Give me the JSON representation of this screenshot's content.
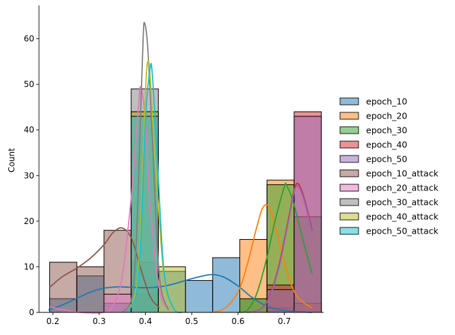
{
  "chart_data": {
    "type": "histogram",
    "title": "",
    "xlabel": "",
    "ylabel": "Count",
    "xlim": [
      0.17,
      0.785
    ],
    "ylim": [
      0,
      67
    ],
    "xticks": [
      0.2,
      0.3,
      0.4,
      0.5,
      0.6,
      0.7
    ],
    "xtick_labels": [
      "0.2",
      "0.3",
      "0.4",
      "0.5",
      "0.6",
      "0.7"
    ],
    "yticks": [
      0,
      10,
      20,
      30,
      40,
      50,
      60
    ],
    "ytick_labels": [
      "0",
      "10",
      "20",
      "30",
      "40",
      "50",
      "60"
    ],
    "bin_edges": [
      0.193,
      0.2517,
      0.3104,
      0.3691,
      0.4278,
      0.4865,
      0.5452,
      0.6039,
      0.6626,
      0.7213,
      0.78
    ],
    "grid": false,
    "legend_position": "right",
    "kde": true,
    "series": [
      {
        "name": "epoch_10",
        "color": "#1f77b4",
        "counts": [
          3,
          8,
          2,
          4,
          9,
          7,
          12,
          3,
          1,
          0
        ],
        "kde": [
          [
            0.19,
            0.5
          ],
          [
            0.22,
            1.6
          ],
          [
            0.25,
            3
          ],
          [
            0.28,
            4.4
          ],
          [
            0.31,
            5.3
          ],
          [
            0.34,
            5.6
          ],
          [
            0.37,
            5.5
          ],
          [
            0.4,
            5.4
          ],
          [
            0.43,
            5.6
          ],
          [
            0.46,
            6.2
          ],
          [
            0.49,
            7.1
          ],
          [
            0.52,
            7.9
          ],
          [
            0.545,
            8.3
          ],
          [
            0.57,
            7.7
          ],
          [
            0.6,
            5.8
          ],
          [
            0.63,
            3.3
          ],
          [
            0.66,
            1.5
          ],
          [
            0.69,
            0.6
          ],
          [
            0.72,
            0.2
          ],
          [
            0.76,
            0
          ]
        ]
      },
      {
        "name": "epoch_20",
        "color": "#ff7f0e",
        "counts": [
          0,
          0,
          0,
          0,
          0,
          0,
          0,
          16,
          29,
          2
        ],
        "kde": [
          [
            0.54,
            0
          ],
          [
            0.57,
            0.8
          ],
          [
            0.6,
            4.5
          ],
          [
            0.62,
            10.5
          ],
          [
            0.64,
            18.5
          ],
          [
            0.655,
            23.2
          ],
          [
            0.67,
            22.5
          ],
          [
            0.69,
            15
          ],
          [
            0.71,
            7.5
          ],
          [
            0.73,
            3.2
          ],
          [
            0.76,
            1
          ]
        ]
      },
      {
        "name": "epoch_30",
        "color": "#2ca02c",
        "counts": [
          0,
          0,
          0,
          0,
          0,
          0,
          0,
          3,
          28,
          21
        ],
        "kde": [
          [
            0.6,
            0
          ],
          [
            0.62,
            0.5
          ],
          [
            0.64,
            4
          ],
          [
            0.66,
            11
          ],
          [
            0.68,
            20
          ],
          [
            0.7,
            27.5
          ],
          [
            0.705,
            27.8
          ],
          [
            0.72,
            24
          ],
          [
            0.74,
            16
          ],
          [
            0.76,
            8.5
          ]
        ]
      },
      {
        "name": "epoch_40",
        "color": "#d62728",
        "counts": [
          0,
          0,
          0,
          0,
          0,
          0,
          0,
          0,
          6,
          44
        ],
        "kde": [
          [
            0.62,
            0
          ],
          [
            0.65,
            0.8
          ],
          [
            0.67,
            4
          ],
          [
            0.69,
            11
          ],
          [
            0.71,
            21
          ],
          [
            0.725,
            28
          ],
          [
            0.74,
            26
          ],
          [
            0.76,
            18
          ]
        ]
      },
      {
        "name": "epoch_50",
        "color": "#9467bd",
        "counts": [
          0,
          0,
          0,
          0,
          0,
          0,
          0,
          0,
          5,
          43
        ],
        "kde": [
          [
            0.62,
            0
          ],
          [
            0.65,
            0.7
          ],
          [
            0.67,
            3.8
          ],
          [
            0.69,
            10.5
          ],
          [
            0.71,
            20.5
          ],
          [
            0.725,
            27.5
          ],
          [
            0.74,
            25.5
          ],
          [
            0.76,
            17.5
          ]
        ]
      },
      {
        "name": "epoch_10_attack",
        "color": "#8c564b",
        "counts": [
          11,
          10,
          18,
          11,
          0,
          0,
          0,
          0,
          0,
          0
        ],
        "kde": [
          [
            0.193,
            5.5
          ],
          [
            0.22,
            7.8
          ],
          [
            0.25,
            9.6
          ],
          [
            0.28,
            11.8
          ],
          [
            0.31,
            14.8
          ],
          [
            0.33,
            17.5
          ],
          [
            0.35,
            18.5
          ],
          [
            0.37,
            16.2
          ],
          [
            0.39,
            9.5
          ],
          [
            0.41,
            3.5
          ],
          [
            0.43,
            1
          ]
        ]
      },
      {
        "name": "epoch_20_attack",
        "color": "#e377c2",
        "counts": [
          0,
          0,
          4,
          44,
          0,
          0,
          0,
          0,
          0,
          0
        ],
        "kde": [
          [
            0.193,
            1.2
          ],
          [
            0.25,
            0.1
          ],
          [
            0.31,
            0
          ],
          [
            0.33,
            1.5
          ],
          [
            0.35,
            8
          ],
          [
            0.37,
            26
          ],
          [
            0.385,
            45
          ],
          [
            0.39,
            49.4
          ],
          [
            0.4,
            42
          ],
          [
            0.41,
            24
          ],
          [
            0.43,
            5
          ],
          [
            0.45,
            0.5
          ]
        ]
      },
      {
        "name": "epoch_30_attack",
        "color": "#7f7f7f",
        "counts": [
          0,
          0,
          0,
          49,
          0,
          0,
          0,
          0,
          0,
          0
        ],
        "kde": [
          [
            0.35,
            0
          ],
          [
            0.37,
            3
          ],
          [
            0.38,
            15
          ],
          [
            0.39,
            45
          ],
          [
            0.395,
            60
          ],
          [
            0.398,
            63.5
          ],
          [
            0.405,
            58
          ],
          [
            0.415,
            38
          ],
          [
            0.43,
            8
          ],
          [
            0.45,
            0.5
          ]
        ]
      },
      {
        "name": "epoch_40_attack",
        "color": "#bcbd22",
        "counts": [
          0,
          0,
          0,
          44,
          10,
          0,
          0,
          0,
          0,
          0
        ],
        "kde": [
          [
            0.36,
            0
          ],
          [
            0.38,
            5
          ],
          [
            0.39,
            20
          ],
          [
            0.4,
            48
          ],
          [
            0.405,
            55
          ],
          [
            0.41,
            52
          ],
          [
            0.42,
            35
          ],
          [
            0.44,
            8
          ],
          [
            0.46,
            1
          ],
          [
            0.48,
            0
          ]
        ]
      },
      {
        "name": "epoch_50_attack",
        "color": "#17becf",
        "counts": [
          0,
          0,
          0,
          43,
          0,
          0,
          0,
          0,
          0,
          0
        ],
        "kde": [
          [
            0.36,
            0
          ],
          [
            0.38,
            4
          ],
          [
            0.39,
            16
          ],
          [
            0.4,
            42
          ],
          [
            0.41,
            53.5
          ],
          [
            0.415,
            52
          ],
          [
            0.425,
            35
          ],
          [
            0.44,
            9
          ],
          [
            0.46,
            1
          ],
          [
            0.48,
            0
          ]
        ]
      }
    ]
  }
}
